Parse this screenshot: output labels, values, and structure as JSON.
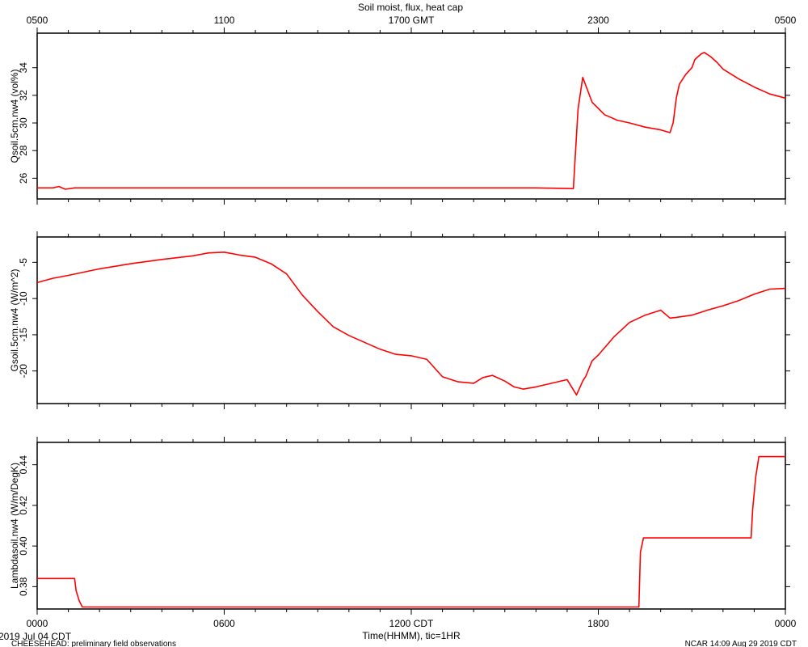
{
  "title": "Soil moist, flux, heat cap",
  "top_axis": {
    "ticks": [
      {
        "hour": 0,
        "label": "0500"
      },
      {
        "hour": 6,
        "label": "1100"
      },
      {
        "hour": 12,
        "label": "1700 GMT"
      },
      {
        "hour": 18,
        "label": "2300"
      },
      {
        "hour": 24,
        "label": "0500"
      }
    ]
  },
  "bottom_axis": {
    "ticks": [
      {
        "hour": 0,
        "label": "0000"
      },
      {
        "hour": 6,
        "label": "0600"
      },
      {
        "hour": 12,
        "label": "1200 CDT"
      },
      {
        "hour": 18,
        "label": "1800"
      },
      {
        "hour": 24,
        "label": "0000"
      }
    ],
    "xlabel": "Time(HHMM), tic=1HR"
  },
  "footer": {
    "date": "2019 Jul 04 CDT",
    "left": "CHEESEHEAD: preliminary field observations",
    "right": "NCAR 14:09 Aug 29 2019 CDT"
  },
  "line_color": "#ff0000",
  "chart_data": [
    {
      "type": "line",
      "ylabel": "Qsoil.5cm.nw4 (vol%)",
      "ylim": [
        24.5,
        36.5
      ],
      "yticks": [
        26,
        28,
        30,
        32,
        34
      ],
      "series": [
        {
          "x": [
            0,
            0.5,
            0.7,
            0.9,
            1.2,
            1.5,
            2,
            3,
            4,
            5,
            6,
            7,
            8,
            8.9,
            9.1,
            10,
            11,
            11.5,
            12,
            13,
            14,
            15,
            16,
            17.2,
            17.35,
            17.5,
            17.8,
            18.2,
            18.6,
            19,
            19.5,
            20,
            20.3,
            20.4,
            20.5,
            20.6,
            20.8,
            21.0,
            21.1,
            21.3,
            21.4,
            21.6,
            21.8,
            22.0,
            22.5,
            23.0,
            23.5,
            24.0
          ],
          "y": [
            25.3,
            25.3,
            25.4,
            25.2,
            25.3,
            25.3,
            25.3,
            25.3,
            25.3,
            25.3,
            25.3,
            25.3,
            25.3,
            25.3,
            25.3,
            25.3,
            25.3,
            25.3,
            25.3,
            25.3,
            25.3,
            25.3,
            25.3,
            25.25,
            31.0,
            33.3,
            31.5,
            30.6,
            30.2,
            30.0,
            29.7,
            29.5,
            29.3,
            30.0,
            31.8,
            32.8,
            33.5,
            34.0,
            34.6,
            35.0,
            35.1,
            34.8,
            34.4,
            33.9,
            33.2,
            32.6,
            32.1,
            31.8
          ]
        }
      ]
    },
    {
      "type": "line",
      "ylabel": "Gsoil.5cm.nw4 (W/m^2)",
      "ylim": [
        -24.5,
        -1.5
      ],
      "yticks": [
        -5,
        -10,
        -15,
        -20
      ],
      "series": [
        {
          "x": [
            0,
            0.5,
            1.0,
            2,
            3,
            4,
            5,
            5.5,
            6,
            6.5,
            7,
            7.5,
            8,
            8.5,
            9,
            9.5,
            10,
            11,
            11.5,
            12,
            12.5,
            13,
            13.5,
            14,
            14.3,
            14.6,
            15,
            15.3,
            15.6,
            16,
            16.5,
            17,
            17.3,
            17.5,
            17.6,
            17.8,
            18,
            18.5,
            19,
            19.5,
            20,
            20.3,
            20.5,
            21.0,
            21.5,
            22,
            22.5,
            23,
            23.5,
            24.0
          ],
          "y": [
            -7.8,
            -7.2,
            -6.8,
            -5.9,
            -5.2,
            -4.6,
            -4.1,
            -3.7,
            -3.6,
            -4.0,
            -4.3,
            -5.2,
            -6.6,
            -9.5,
            -11.8,
            -13.9,
            -15.1,
            -17.0,
            -17.7,
            -17.9,
            -18.4,
            -20.8,
            -21.5,
            -21.7,
            -20.9,
            -20.6,
            -21.4,
            -22.2,
            -22.5,
            -22.2,
            -21.7,
            -21.2,
            -23.3,
            -21.4,
            -20.7,
            -18.6,
            -17.8,
            -15.3,
            -13.3,
            -12.3,
            -11.6,
            -12.7,
            -12.6,
            -12.3,
            -11.6,
            -11.0,
            -10.3,
            -9.4,
            -8.7,
            -8.6
          ]
        }
      ]
    },
    {
      "type": "line",
      "ylabel": "Lambdasoil.nw4 (W/m/DegK)",
      "ylim": [
        0.369,
        0.451
      ],
      "yticks": [
        0.38,
        0.4,
        0.42,
        0.44
      ],
      "series": [
        {
          "x": [
            0,
            1.2,
            1.25,
            1.35,
            1.45,
            19.3,
            19.35,
            19.45,
            22.9,
            22.95,
            23.05,
            23.15,
            24.0
          ],
          "y": [
            0.384,
            0.384,
            0.378,
            0.373,
            0.37,
            0.37,
            0.397,
            0.404,
            0.404,
            0.418,
            0.434,
            0.444,
            0.444
          ]
        }
      ]
    }
  ]
}
